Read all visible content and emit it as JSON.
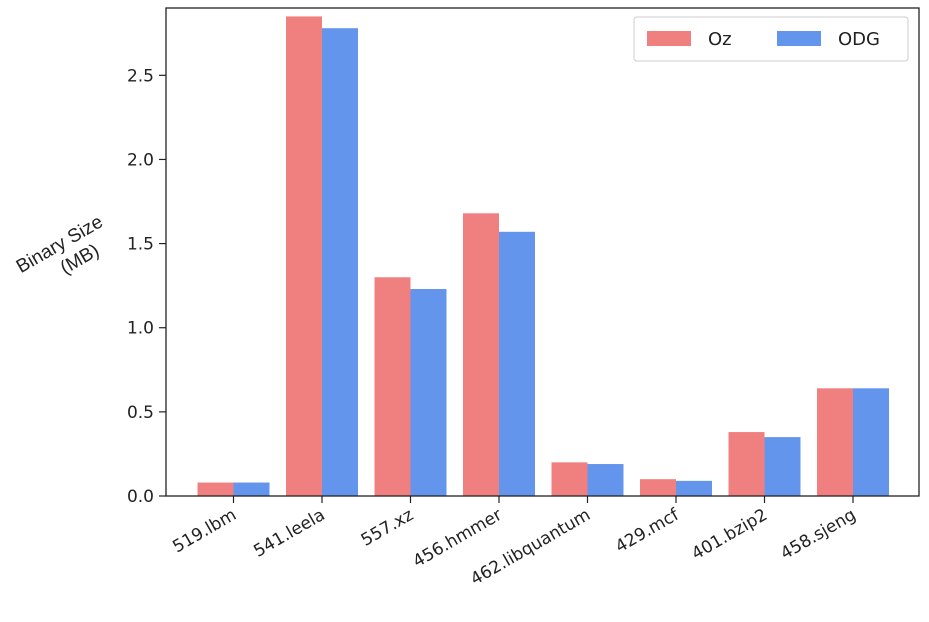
{
  "chart_data": {
    "type": "bar",
    "title": "",
    "xlabel": "",
    "ylabel": [
      "Binary Size",
      "(MB)"
    ],
    "categories": [
      "519.lbm",
      "541.leela",
      "557.xz",
      "456.hmmer",
      "462.libquantum",
      "429.mcf",
      "401.bzip2",
      "458.sjeng"
    ],
    "series": [
      {
        "name": "Oz",
        "color": "#f08080",
        "values": [
          0.08,
          2.85,
          1.3,
          1.68,
          0.2,
          0.1,
          0.38,
          0.64
        ]
      },
      {
        "name": "ODG",
        "color": "#6495ed",
        "values": [
          0.08,
          2.78,
          1.23,
          1.57,
          0.19,
          0.09,
          0.35,
          0.64
        ]
      }
    ],
    "ylim": [
      0,
      2.9
    ],
    "yticks": [
      0.0,
      0.5,
      1.0,
      1.5,
      2.0,
      2.5
    ],
    "ytick_labels": [
      "0.0",
      "0.5",
      "1.0",
      "1.5",
      "2.0",
      "2.5"
    ],
    "grid": false,
    "legend_position": "top-right"
  }
}
